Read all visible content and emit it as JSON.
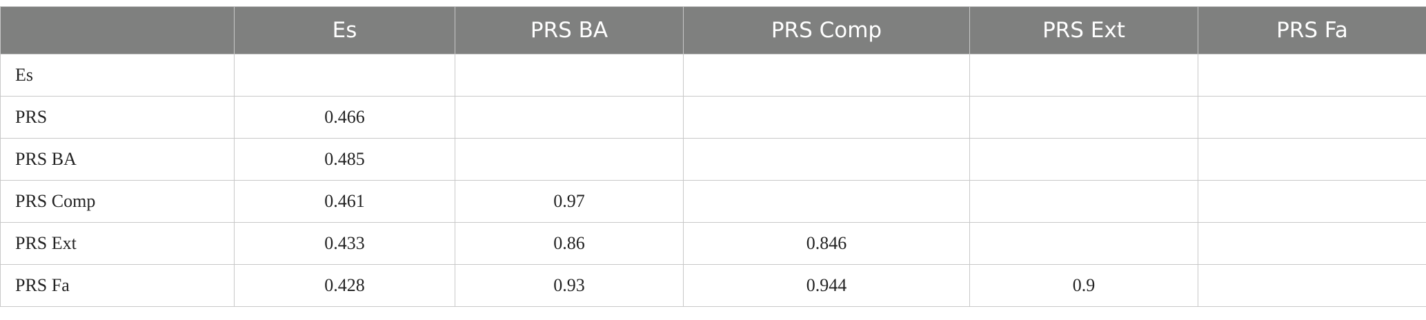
{
  "table": {
    "header": [
      null,
      "Es",
      "PRS BA",
      "PRS Comp",
      "PRS Ext",
      "PRS Fa"
    ],
    "rows": [
      [
        "Es",
        null,
        null,
        null,
        null,
        null
      ],
      [
        "PRS",
        0.466,
        null,
        null,
        null,
        null
      ],
      [
        "PRS BA",
        0.485,
        null,
        null,
        null,
        null
      ],
      [
        "PRS Comp",
        0.461,
        0.97,
        null,
        null,
        null
      ],
      [
        "PRS Ext",
        0.433,
        0.86,
        0.846,
        null,
        null
      ],
      [
        "PRS Fa",
        0.428,
        0.93,
        0.944,
        0.9,
        null
      ]
    ]
  }
}
